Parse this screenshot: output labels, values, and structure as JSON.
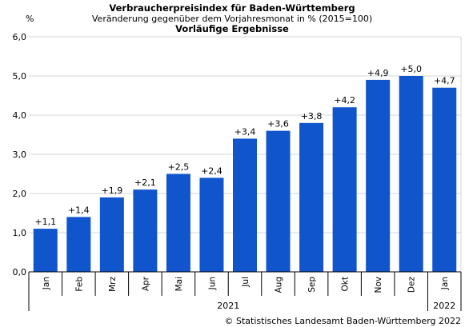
{
  "chart_data": {
    "type": "bar",
    "title": "Verbraucherpreisindex für Baden-Württemberg",
    "subtitle": "Veränderung gegenüber dem Vorjahresmonat in % (2015=100)",
    "subtitle2": "Vorläufige Ergebnisse",
    "ylabel": "%",
    "ylim": [
      0,
      6
    ],
    "yticks": [
      "0,0",
      "1,0",
      "2,0",
      "3,0",
      "4,0",
      "5,0",
      "6,0"
    ],
    "categories": [
      "Jan",
      "Feb",
      "Mrz",
      "Apr",
      "Mai",
      "Jun",
      "Jul",
      "Aug",
      "Sep",
      "Okt",
      "Nov",
      "Dez",
      "Jan"
    ],
    "values": [
      1.1,
      1.4,
      1.9,
      2.1,
      2.5,
      2.4,
      3.4,
      3.6,
      3.8,
      4.2,
      4.9,
      5.0,
      4.7
    ],
    "data_labels": [
      "+1,1",
      "+1,4",
      "+1,9",
      "+2,1",
      "+2,5",
      "+2,4",
      "+3,4",
      "+3,6",
      "+3,8",
      "+4,2",
      "+4,9",
      "+5,0",
      "+4,7"
    ],
    "groups": [
      {
        "label": "2021",
        "count": 12
      },
      {
        "label": "2022",
        "count": 1
      }
    ],
    "grid": true,
    "bar_color": "#1155cc",
    "grid_color": "#d4d4d4"
  },
  "credit": "© Statistisches Landesamt Baden-Württemberg 2022"
}
